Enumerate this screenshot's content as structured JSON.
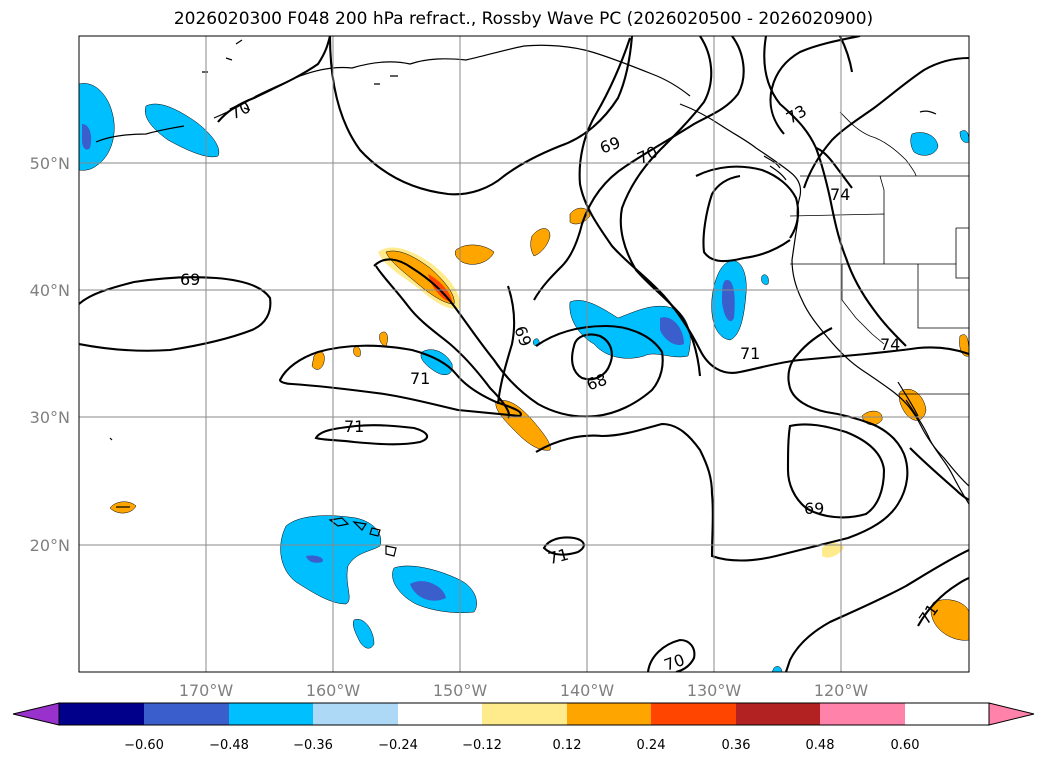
{
  "title": "2026020300 F048 200 hPa refract., Rossby Wave PC (2026020500 - 2026020900)",
  "map": {
    "lon_range": [
      -180,
      -110
    ],
    "lat_range": [
      10,
      60
    ],
    "lat_labels": [
      "50°N",
      "40°N",
      "30°N",
      "20°N"
    ],
    "lon_labels": [
      "170°W",
      "160°W",
      "150°W",
      "140°W",
      "130°W",
      "120°W"
    ],
    "grid": true
  },
  "contour_labels": [
    "70",
    "69",
    "70",
    "73",
    "74",
    "69",
    "69",
    "71",
    "68",
    "71",
    "71",
    "74",
    "69",
    "71",
    "71",
    "70"
  ],
  "colorbar": {
    "ticks": [
      "−0.60",
      "−0.48",
      "−0.36",
      "−0.24",
      "−0.12",
      "0.12",
      "0.24",
      "0.36",
      "0.48",
      "0.60"
    ],
    "colors": [
      "#9932cc",
      "#00008b",
      "#3a5fcd",
      "#00bfff",
      "#add8f6",
      "#ffffff",
      "#ffeb8c",
      "#ffa500",
      "#ff4500",
      "#b22222",
      "#ff82ab"
    ],
    "extend": "both"
  }
}
